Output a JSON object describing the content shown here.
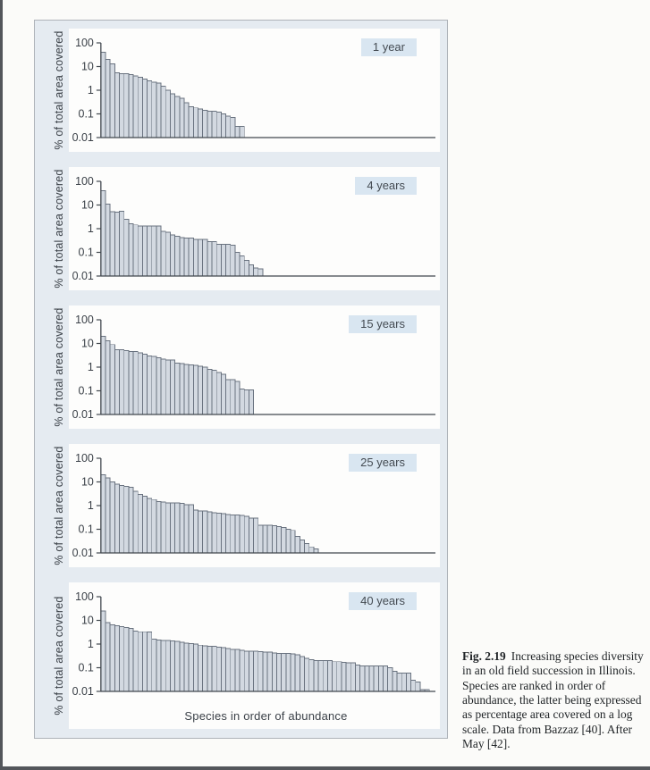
{
  "figure": {
    "panel_bg": "#e5ebf1",
    "panel_border": "#aeb3b9",
    "card_bg": "#fdfdfc",
    "badge_bg": "#d9e6f1",
    "bar_fill": "#d3d9e1",
    "bar_stroke": "#6a7380",
    "axis_color": "#41474e",
    "text_color": "#3b4148"
  },
  "caption": {
    "fig_label": "Fig. 2.19",
    "text": "Increasing species diversity in an old field succession in Illinois. Species are ranked in order of abundance, the latter being expressed as percentage area covered on a log scale. Data from Bazzaz [40]. After May [42]."
  },
  "chart_data": [
    {
      "type": "bar",
      "title": "1 year",
      "ylabel": "% of total area covered",
      "xlabel": "Species in order of abundance",
      "yscale": "log",
      "ylim": [
        0.01,
        100
      ],
      "yticks": [
        "100",
        "10",
        "1",
        "0.1",
        "0.01"
      ],
      "n_species": 31,
      "values": [
        40,
        20,
        13,
        5.5,
        5,
        5,
        4.5,
        4,
        3.5,
        3,
        2.5,
        2.2,
        2,
        1.5,
        1,
        0.7,
        0.55,
        0.45,
        0.3,
        0.2,
        0.18,
        0.16,
        0.14,
        0.13,
        0.13,
        0.12,
        0.1,
        0.08,
        0.07,
        0.03,
        0.03
      ]
    },
    {
      "type": "bar",
      "title": "4 years",
      "ylabel": "% of total area covered",
      "xlabel": "Species in order of abundance",
      "yscale": "log",
      "ylim": [
        0.01,
        100
      ],
      "yticks": [
        "100",
        "10",
        "1",
        "0.1",
        "0.01"
      ],
      "n_species": 35,
      "values": [
        40,
        11,
        5.3,
        5,
        5.5,
        2.5,
        1.6,
        1.45,
        1.3,
        1.3,
        1.3,
        1.3,
        1.3,
        0.78,
        0.7,
        0.55,
        0.47,
        0.42,
        0.4,
        0.4,
        0.35,
        0.35,
        0.35,
        0.28,
        0.28,
        0.22,
        0.22,
        0.22,
        0.2,
        0.1,
        0.07,
        0.045,
        0.03,
        0.022,
        0.02
      ]
    },
    {
      "type": "bar",
      "title": "15 years",
      "ylabel": "% of total area covered",
      "xlabel": "Species in order of abundance",
      "yscale": "log",
      "ylim": [
        0.01,
        100
      ],
      "yticks": [
        "100",
        "10",
        "1",
        "0.1",
        "0.01"
      ],
      "n_species": 33,
      "values": [
        20,
        13,
        9,
        5.5,
        5.5,
        5,
        4.5,
        4.5,
        4,
        3.5,
        3,
        2.8,
        2.5,
        2.2,
        2,
        2,
        1.5,
        1.4,
        1.3,
        1.25,
        1.2,
        1.1,
        1,
        0.8,
        0.75,
        0.6,
        0.5,
        0.3,
        0.3,
        0.25,
        0.12,
        0.11,
        0.11
      ]
    },
    {
      "type": "bar",
      "title": "25 years",
      "ylabel": "% of total area covered",
      "xlabel": "Species in order of abundance",
      "yscale": "log",
      "ylim": [
        0.01,
        100
      ],
      "yticks": [
        "100",
        "10",
        "1",
        "0.1",
        "0.01"
      ],
      "n_species": 47,
      "values": [
        20,
        15,
        10,
        8,
        7,
        6.5,
        6,
        4,
        3,
        2.5,
        2,
        1.8,
        1.5,
        1.4,
        1.3,
        1.3,
        1.3,
        1.25,
        1.1,
        1.1,
        0.65,
        0.6,
        0.6,
        0.55,
        0.5,
        0.48,
        0.45,
        0.42,
        0.4,
        0.4,
        0.38,
        0.35,
        0.3,
        0.3,
        0.15,
        0.15,
        0.15,
        0.14,
        0.13,
        0.12,
        0.1,
        0.09,
        0.05,
        0.035,
        0.025,
        0.018,
        0.015
      ]
    },
    {
      "type": "bar",
      "title": "40 years",
      "ylabel": "% of total area covered",
      "xlabel": "Species in order of abundance",
      "yscale": "log",
      "ylim": [
        0.01,
        100
      ],
      "yticks": [
        "100",
        "10",
        "1",
        "0.1",
        "0.01"
      ],
      "n_species": 71,
      "values": [
        25,
        8,
        6.5,
        6,
        5.5,
        5,
        4.5,
        3.5,
        3.3,
        3.3,
        3.2,
        1.6,
        1.5,
        1.4,
        1.4,
        1.35,
        1.3,
        1.2,
        1.1,
        1.05,
        1.0,
        0.9,
        0.85,
        0.8,
        0.8,
        0.75,
        0.7,
        0.65,
        0.6,
        0.6,
        0.55,
        0.5,
        0.5,
        0.5,
        0.48,
        0.45,
        0.45,
        0.42,
        0.4,
        0.4,
        0.4,
        0.38,
        0.35,
        0.3,
        0.25,
        0.22,
        0.2,
        0.2,
        0.2,
        0.2,
        0.18,
        0.18,
        0.17,
        0.16,
        0.16,
        0.13,
        0.12,
        0.12,
        0.12,
        0.12,
        0.12,
        0.12,
        0.1,
        0.07,
        0.06,
        0.06,
        0.06,
        0.03,
        0.025,
        0.012,
        0.012
      ]
    }
  ]
}
